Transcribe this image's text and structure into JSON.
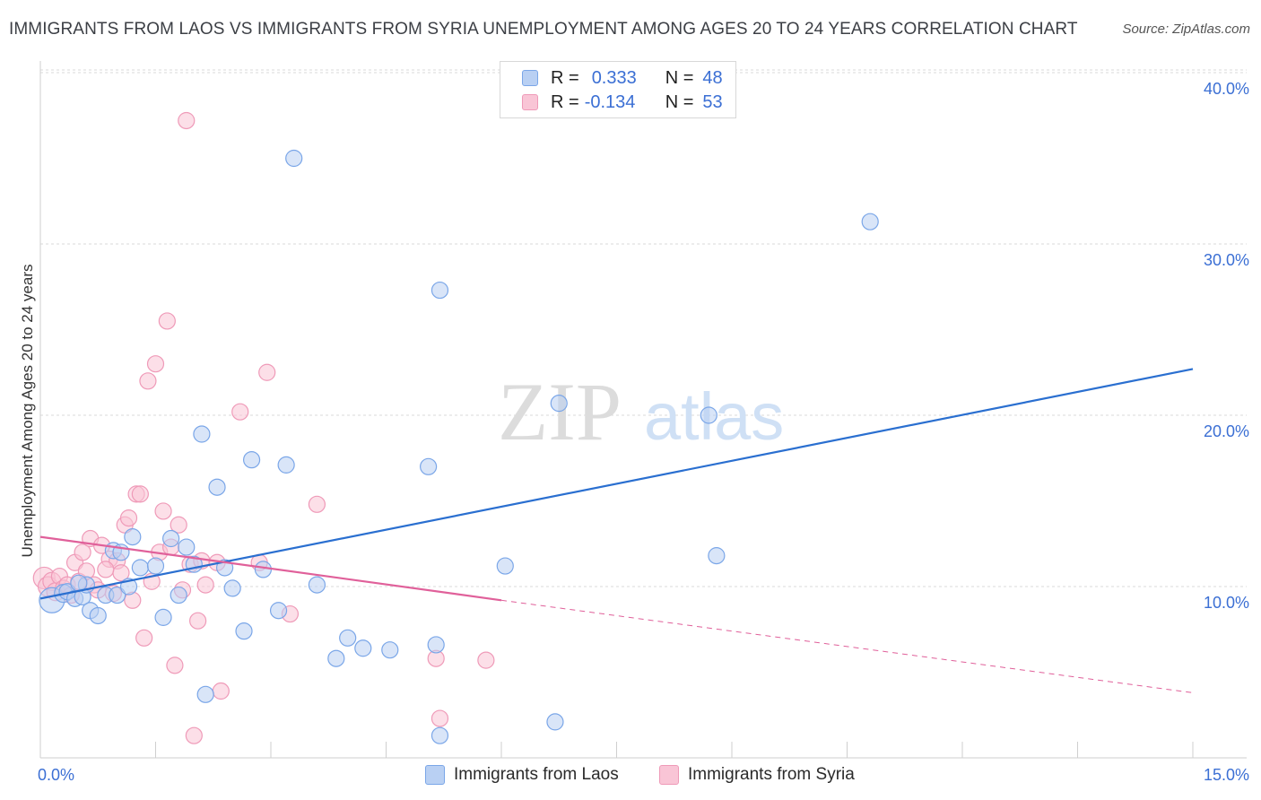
{
  "chart_data": {
    "type": "scatter",
    "title": "IMMIGRANTS FROM LAOS VS IMMIGRANTS FROM SYRIA UNEMPLOYMENT AMONG AGES 20 TO 24 YEARS CORRELATION CHART",
    "source": "Source: ZipAtlas.com",
    "ylabel": "Unemployment Among Ages 20 to 24 years",
    "xlabel": "",
    "xlim": [
      0,
      15
    ],
    "ylim": [
      0,
      40
    ],
    "x_tick_labels": [
      "0.0%",
      "15.0%"
    ],
    "y_tick_labels": [
      "10.0%",
      "20.0%",
      "30.0%",
      "40.0%"
    ],
    "y_ticks": [
      10,
      20,
      30,
      40
    ],
    "watermark": {
      "zip": "ZIP",
      "atlas": "atlas"
    },
    "legend": [
      {
        "r_label": "R =",
        "r_value": "0.333",
        "n_label": "N =",
        "n_value": "48"
      },
      {
        "r_label": "R =",
        "r_value": "-0.134",
        "n_label": "N =",
        "n_value": "53"
      }
    ],
    "series": [
      {
        "name": "Immigrants from Laos",
        "color": "#7aa6e8",
        "fill": "#b9d0f3",
        "line_color": "#2a6fd0",
        "trend": {
          "x0": 0,
          "y0": 9.3,
          "x1": 15,
          "y1": 22.7
        },
        "points": [
          [
            0.15,
            9.2,
            14
          ],
          [
            0.3,
            9.6,
            10
          ],
          [
            0.35,
            9.7,
            9
          ],
          [
            0.45,
            9.3,
            9
          ],
          [
            0.55,
            9.4,
            9
          ],
          [
            0.6,
            10.1,
            9
          ],
          [
            0.65,
            8.6,
            9
          ],
          [
            0.75,
            8.3,
            9
          ],
          [
            0.85,
            9.5,
            9
          ],
          [
            0.95,
            12.1,
            9
          ],
          [
            1.0,
            9.5,
            9
          ],
          [
            1.15,
            10.0,
            9
          ],
          [
            1.2,
            12.9,
            9
          ],
          [
            1.3,
            11.1,
            9
          ],
          [
            1.5,
            11.2,
            9
          ],
          [
            1.6,
            8.2,
            9
          ],
          [
            1.7,
            12.8,
            9
          ],
          [
            1.8,
            9.5,
            9
          ],
          [
            1.9,
            12.3,
            9
          ],
          [
            2.0,
            11.3,
            9
          ],
          [
            2.1,
            18.9,
            9
          ],
          [
            2.3,
            15.8,
            9
          ],
          [
            2.4,
            11.1,
            9
          ],
          [
            2.5,
            9.9,
            9
          ],
          [
            2.65,
            7.4,
            9
          ],
          [
            2.75,
            17.4,
            9
          ],
          [
            2.9,
            11.0,
            9
          ],
          [
            3.1,
            8.6,
            9
          ],
          [
            3.2,
            17.1,
            9
          ],
          [
            3.3,
            35.0,
            9
          ],
          [
            3.6,
            10.1,
            9
          ],
          [
            3.85,
            5.8,
            9
          ],
          [
            4.0,
            7.0,
            9
          ],
          [
            4.2,
            6.4,
            9
          ],
          [
            4.55,
            6.3,
            9
          ],
          [
            5.05,
            17.0,
            9
          ],
          [
            5.15,
            6.6,
            9
          ],
          [
            5.2,
            27.3,
            9
          ],
          [
            5.2,
            1.3,
            9
          ],
          [
            6.05,
            11.2,
            9
          ],
          [
            6.7,
            2.1,
            9
          ],
          [
            6.75,
            20.7,
            9
          ],
          [
            8.7,
            20.0,
            9
          ],
          [
            8.8,
            11.8,
            9
          ],
          [
            10.8,
            31.3,
            9
          ],
          [
            2.15,
            3.7,
            9
          ],
          [
            1.05,
            12.0,
            9
          ],
          [
            0.5,
            10.2,
            9
          ]
        ]
      },
      {
        "name": "Immigrants from Syria",
        "color": "#ef9ab8",
        "fill": "#f9c5d6",
        "line_color": "#e0609a",
        "trend": {
          "x0": 0,
          "y0": 12.9,
          "x1": 6.0,
          "y1": 9.2
        },
        "trend_dashed": {
          "x0": 6.0,
          "y0": 9.2,
          "x1": 15,
          "y1": 3.8
        },
        "points": [
          [
            0.05,
            10.5,
            12
          ],
          [
            0.1,
            10.0,
            11
          ],
          [
            0.15,
            10.3,
            10
          ],
          [
            0.2,
            9.7,
            10
          ],
          [
            0.25,
            10.6,
            9
          ],
          [
            0.3,
            9.9,
            9
          ],
          [
            0.35,
            10.1,
            9
          ],
          [
            0.4,
            9.5,
            9
          ],
          [
            0.45,
            11.4,
            9
          ],
          [
            0.5,
            10.3,
            9
          ],
          [
            0.55,
            12.0,
            9
          ],
          [
            0.6,
            10.9,
            9
          ],
          [
            0.65,
            12.8,
            9
          ],
          [
            0.7,
            10.1,
            9
          ],
          [
            0.75,
            9.8,
            9
          ],
          [
            0.8,
            12.4,
            9
          ],
          [
            0.9,
            11.6,
            9
          ],
          [
            0.95,
            9.6,
            9
          ],
          [
            1.0,
            11.5,
            9
          ],
          [
            1.05,
            10.8,
            9
          ],
          [
            1.1,
            13.6,
            9
          ],
          [
            1.15,
            14.0,
            9
          ],
          [
            1.2,
            9.2,
            9
          ],
          [
            1.25,
            15.4,
            9
          ],
          [
            1.3,
            15.4,
            9
          ],
          [
            1.35,
            7.0,
            9
          ],
          [
            1.4,
            22.0,
            9
          ],
          [
            1.45,
            10.3,
            9
          ],
          [
            1.5,
            23.0,
            9
          ],
          [
            1.55,
            12.0,
            9
          ],
          [
            1.6,
            14.4,
            9
          ],
          [
            1.65,
            25.5,
            9
          ],
          [
            1.7,
            12.3,
            9
          ],
          [
            1.75,
            5.4,
            9
          ],
          [
            1.8,
            13.6,
            9
          ],
          [
            1.85,
            9.8,
            9
          ],
          [
            1.9,
            37.2,
            9
          ],
          [
            1.95,
            11.3,
            9
          ],
          [
            2.0,
            1.3,
            9
          ],
          [
            2.05,
            8.0,
            9
          ],
          [
            2.1,
            11.5,
            9
          ],
          [
            2.15,
            10.1,
            9
          ],
          [
            2.3,
            11.4,
            9
          ],
          [
            2.35,
            3.9,
            9
          ],
          [
            2.6,
            20.2,
            9
          ],
          [
            2.85,
            11.4,
            9
          ],
          [
            2.95,
            22.5,
            9
          ],
          [
            3.25,
            8.4,
            9
          ],
          [
            3.6,
            14.8,
            9
          ],
          [
            5.15,
            5.8,
            9
          ],
          [
            5.2,
            2.3,
            9
          ],
          [
            5.8,
            5.7,
            9
          ],
          [
            0.85,
            11.0,
            9
          ]
        ]
      }
    ]
  }
}
